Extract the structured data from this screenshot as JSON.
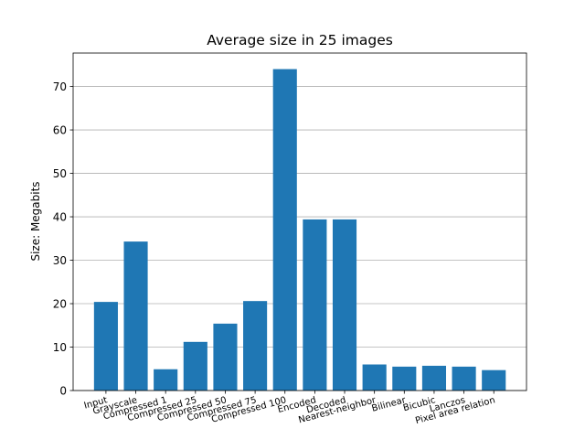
{
  "chart_data": {
    "type": "bar",
    "title": "Average size in 25 images",
    "xlabel": "",
    "ylabel": "Size: Megabits",
    "categories": [
      "Input",
      "Grayscale",
      "Compressed 1",
      "Compressed 25",
      "Compressed 50",
      "Compressed 75",
      "Compressed 100",
      "Encoded",
      "Decoded",
      "Nearest-neighbor",
      "Bilinear",
      "Bicubic",
      "Lanczos",
      "Pixel area relation"
    ],
    "values": [
      20.4,
      34.3,
      4.9,
      11.2,
      15.4,
      20.6,
      74.0,
      39.4,
      39.4,
      6.0,
      5.5,
      5.7,
      5.5,
      4.7
    ],
    "yticks": [
      0,
      10,
      20,
      30,
      40,
      50,
      60,
      70
    ],
    "ylim": [
      0,
      77.7
    ],
    "grid": "y",
    "bar_color": "#1f77b4"
  }
}
